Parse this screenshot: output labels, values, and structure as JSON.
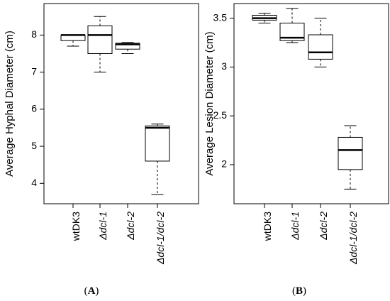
{
  "chart_data": [
    {
      "type": "box",
      "panel_label": "A",
      "title": "",
      "xlabel": "",
      "ylabel": "Average Hyphal Diameter (cm)",
      "ylim": [
        3.45,
        8.85
      ],
      "yticks": [
        4,
        5,
        6,
        7,
        8
      ],
      "grid": false,
      "categories": [
        {
          "prefix": "",
          "name": "wtDK3"
        },
        {
          "prefix": "Δ",
          "name": "dcl-1"
        },
        {
          "prefix": "Δ",
          "name": "dcl-2"
        },
        {
          "prefix": "Δ",
          "name": "dcl-1/dcl-2"
        }
      ],
      "boxes": [
        {
          "min": 7.7,
          "q1": 7.85,
          "median": 8.0,
          "q3": 8.0,
          "max": 8.0
        },
        {
          "min": 7.0,
          "q1": 7.5,
          "median": 8.0,
          "q3": 8.25,
          "max": 8.5
        },
        {
          "min": 7.5,
          "q1": 7.62,
          "median": 7.75,
          "q3": 7.78,
          "max": 7.8
        },
        {
          "min": 3.7,
          "q1": 4.6,
          "median": 5.5,
          "q3": 5.55,
          "max": 5.6
        }
      ]
    },
    {
      "type": "box",
      "panel_label": "B",
      "title": "",
      "xlabel": "",
      "ylabel": "Average Lesion Diameter (cm)",
      "ylim": [
        1.6,
        3.65
      ],
      "yticks": [
        2,
        2.5,
        3,
        3.5
      ],
      "grid": false,
      "categories": [
        {
          "prefix": "",
          "name": "wtDK3"
        },
        {
          "prefix": "Δ",
          "name": "dcl-1"
        },
        {
          "prefix": "Δ",
          "name": "dcl-2"
        },
        {
          "prefix": "Δ",
          "name": "dcl-1/dcl-2"
        }
      ],
      "boxes": [
        {
          "min": 3.45,
          "q1": 3.48,
          "median": 3.5,
          "q3": 3.53,
          "max": 3.55
        },
        {
          "min": 3.25,
          "q1": 3.27,
          "median": 3.3,
          "q3": 3.45,
          "max": 3.6
        },
        {
          "min": 3.0,
          "q1": 3.08,
          "median": 3.15,
          "q3": 3.33,
          "max": 3.5
        },
        {
          "min": 1.75,
          "q1": 1.95,
          "median": 2.15,
          "q3": 2.28,
          "max": 2.4
        }
      ]
    }
  ]
}
